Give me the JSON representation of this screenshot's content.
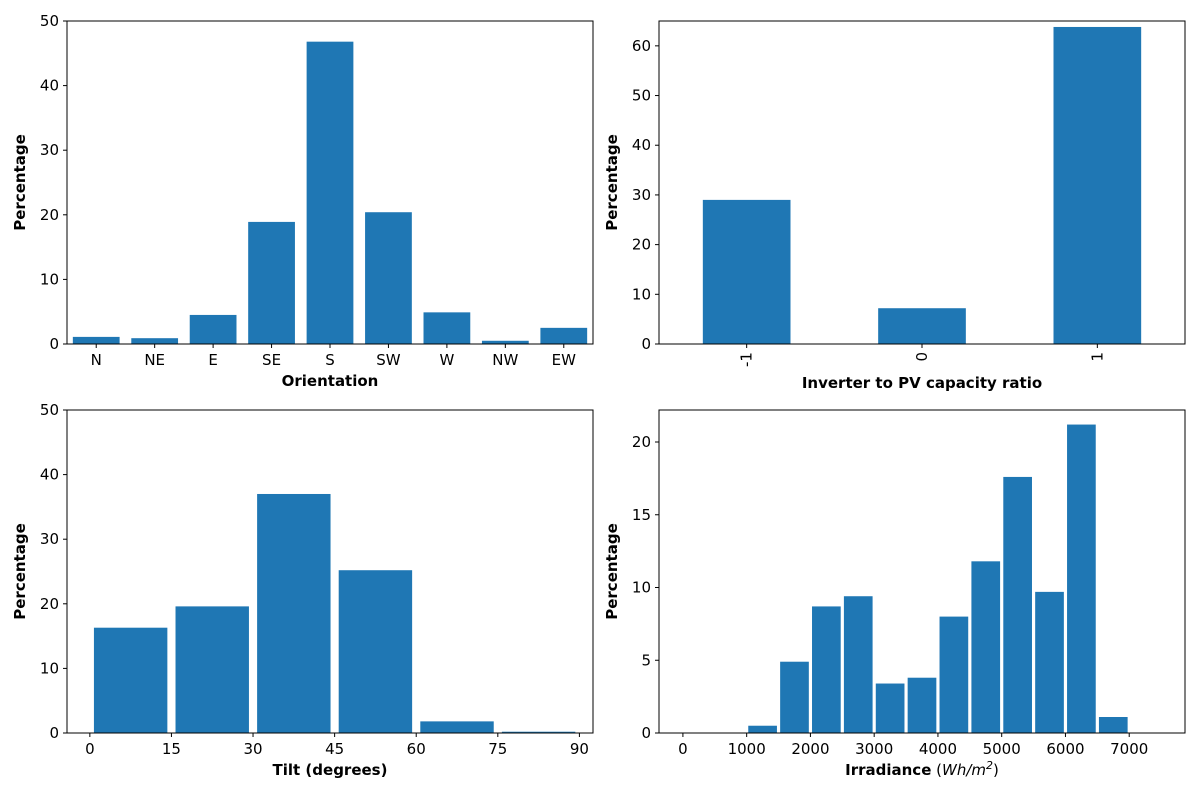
{
  "chart_data": [
    {
      "type": "bar",
      "categories": [
        "N",
        "NE",
        "E",
        "SE",
        "S",
        "SW",
        "W",
        "NW",
        "EW"
      ],
      "values": [
        1.1,
        0.9,
        4.5,
        18.9,
        46.8,
        20.4,
        4.9,
        0.5,
        2.5
      ],
      "xlabel": "Orientation",
      "ylabel": "Percentage",
      "ylim": [
        0,
        50
      ],
      "yticks": [
        "0",
        "10",
        "20",
        "30",
        "40",
        "50"
      ],
      "grid": false
    },
    {
      "type": "bar",
      "categories": [
        "-1",
        "0",
        "1"
      ],
      "values": [
        29.0,
        7.2,
        63.8
      ],
      "xlabel": "Inverter to PV capacity ratio",
      "ylabel": "Percentage",
      "ylim": [
        0,
        65
      ],
      "yticks": [
        "0",
        "10",
        "20",
        "30",
        "40",
        "50",
        "60"
      ],
      "xtick_rotation": "vertical",
      "grid": false
    },
    {
      "type": "bar",
      "bins": [
        [
          0,
          15
        ],
        [
          15,
          30
        ],
        [
          30,
          45
        ],
        [
          45,
          60
        ],
        [
          60,
          75
        ],
        [
          75,
          90
        ]
      ],
      "values": [
        16.3,
        19.6,
        37.0,
        25.2,
        1.8,
        0.2
      ],
      "xlabel": "Tilt (degrees)",
      "ylabel": "Percentage",
      "xlim": [
        -4.2,
        92.5
      ],
      "ylim": [
        0,
        50
      ],
      "xticks": [
        "0",
        "15",
        "30",
        "45",
        "60",
        "75",
        "90"
      ],
      "yticks": [
        "0",
        "10",
        "20",
        "30",
        "40",
        "50"
      ],
      "grid": false
    },
    {
      "type": "bar",
      "bins": [
        [
          0,
          500
        ],
        [
          500,
          1000
        ],
        [
          1000,
          1500
        ],
        [
          1500,
          2000
        ],
        [
          2000,
          2500
        ],
        [
          2500,
          3000
        ],
        [
          3000,
          3500
        ],
        [
          3500,
          4000
        ],
        [
          4000,
          4500
        ],
        [
          4500,
          5000
        ],
        [
          5000,
          5500
        ],
        [
          5500,
          6000
        ],
        [
          6000,
          6500
        ],
        [
          6500,
          7000
        ],
        [
          7000,
          7500
        ]
      ],
      "values": [
        0,
        0,
        0.5,
        4.9,
        8.7,
        9.4,
        3.4,
        3.8,
        8.0,
        11.8,
        17.6,
        9.7,
        21.2,
        1.1,
        0
      ],
      "xlabel": "Irradiance",
      "xlabel_unit_base": "Wh/m",
      "xlabel_unit_exp": "2",
      "ylabel": "Percentage",
      "xlim": [
        -375,
        7875
      ],
      "ylim": [
        0,
        22.2
      ],
      "xticks": [
        "0",
        "1000",
        "2000",
        "3000",
        "4000",
        "5000",
        "6000",
        "7000"
      ],
      "yticks": [
        "0",
        "5",
        "10",
        "15",
        "20"
      ],
      "grid": false
    }
  ]
}
